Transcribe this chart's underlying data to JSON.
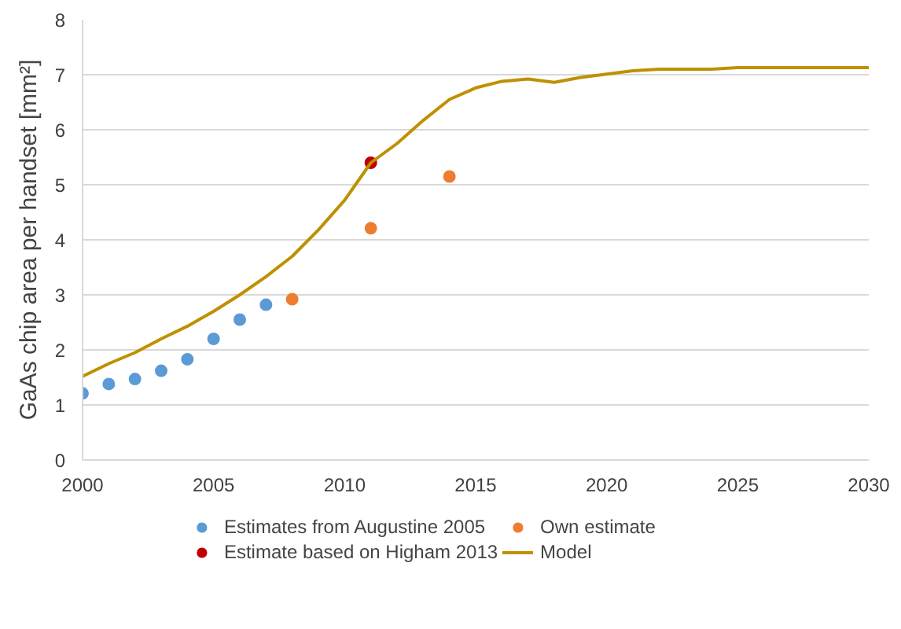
{
  "chart_data": {
    "type": "scatter",
    "ylabel": "GaAs chip area per handset [mm²]",
    "xlim": [
      2000,
      2030
    ],
    "xticks": [
      2000,
      2005,
      2010,
      2015,
      2020,
      2025,
      2030
    ],
    "ylim": [
      0,
      8
    ],
    "yticks": [
      0,
      1,
      2,
      3,
      4,
      5,
      6,
      7,
      8
    ],
    "grid": "y",
    "legend": "bottom",
    "series": [
      {
        "name": "Estimates from Augustine 2005",
        "marker": "circle",
        "color": "#5b9bd5",
        "x": [
          2000,
          2001,
          2002,
          2003,
          2004,
          2005,
          2006,
          2007
        ],
        "values": [
          1.21,
          1.38,
          1.47,
          1.62,
          1.83,
          2.2,
          2.55,
          2.82
        ]
      },
      {
        "name": "Own estimate",
        "marker": "circle",
        "color": "#ed7d31",
        "x": [
          2008,
          2011,
          2014
        ],
        "values": [
          2.92,
          4.21,
          5.15
        ]
      },
      {
        "name": "Estimate based on Higham 2013",
        "marker": "circle",
        "color": "#c00000",
        "x": [
          2011
        ],
        "values": [
          5.4
        ]
      },
      {
        "name": "Model",
        "type": "line",
        "color": "#bf9000",
        "x": [
          2000,
          2001,
          2002,
          2003,
          2004,
          2005,
          2006,
          2007,
          2008,
          2009,
          2010,
          2011,
          2012,
          2013,
          2014,
          2015,
          2016,
          2017,
          2018,
          2019,
          2020,
          2021,
          2022,
          2023,
          2024,
          2025,
          2026,
          2027,
          2028,
          2029,
          2030
        ],
        "values": [
          1.52,
          1.75,
          1.95,
          2.2,
          2.43,
          2.7,
          3.0,
          3.33,
          3.7,
          4.18,
          4.72,
          5.4,
          5.75,
          6.17,
          6.55,
          6.76,
          6.88,
          6.92,
          6.86,
          6.95,
          7.01,
          7.07,
          7.1,
          7.1,
          7.1,
          7.13,
          7.13,
          7.13,
          7.13,
          7.13,
          7.13
        ]
      }
    ]
  }
}
